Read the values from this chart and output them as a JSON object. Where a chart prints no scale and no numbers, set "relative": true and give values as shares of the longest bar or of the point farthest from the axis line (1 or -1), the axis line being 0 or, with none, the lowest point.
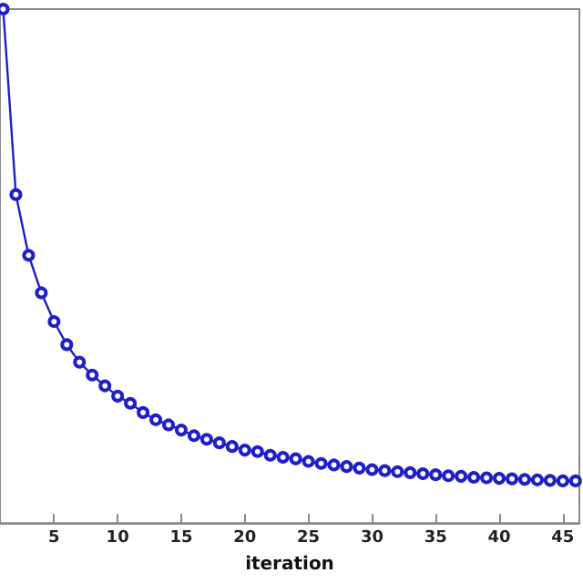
{
  "chart_data": {
    "type": "line",
    "xlabel": "iteration",
    "relative": true,
    "marker": "circle",
    "line_style": "solid",
    "grid": false,
    "x": [
      1,
      2,
      3,
      4,
      5,
      6,
      7,
      8,
      9,
      10,
      11,
      12,
      13,
      14,
      15,
      16,
      17,
      18,
      19,
      20,
      21,
      22,
      23,
      24,
      25,
      26,
      27,
      28,
      29,
      30,
      31,
      32,
      33,
      34,
      35,
      36,
      37,
      38,
      39,
      40,
      41,
      42,
      43,
      44,
      45,
      46
    ],
    "xlim": [
      0.75,
      46.3
    ],
    "xticks": [
      5,
      10,
      15,
      20,
      25,
      30,
      35,
      40,
      45
    ],
    "series": [
      {
        "color": "#1f1fc8",
        "values": [
          1.0,
          0.639,
          0.521,
          0.448,
          0.392,
          0.347,
          0.313,
          0.288,
          0.267,
          0.247,
          0.233,
          0.215,
          0.201,
          0.191,
          0.181,
          0.17,
          0.163,
          0.156,
          0.149,
          0.142,
          0.139,
          0.132,
          0.128,
          0.125,
          0.12,
          0.116,
          0.113,
          0.11,
          0.107,
          0.104,
          0.102,
          0.1,
          0.098,
          0.096,
          0.094,
          0.092,
          0.091,
          0.089,
          0.088,
          0.087,
          0.086,
          0.085,
          0.084,
          0.083,
          0.082,
          0.082
        ]
      }
    ]
  }
}
